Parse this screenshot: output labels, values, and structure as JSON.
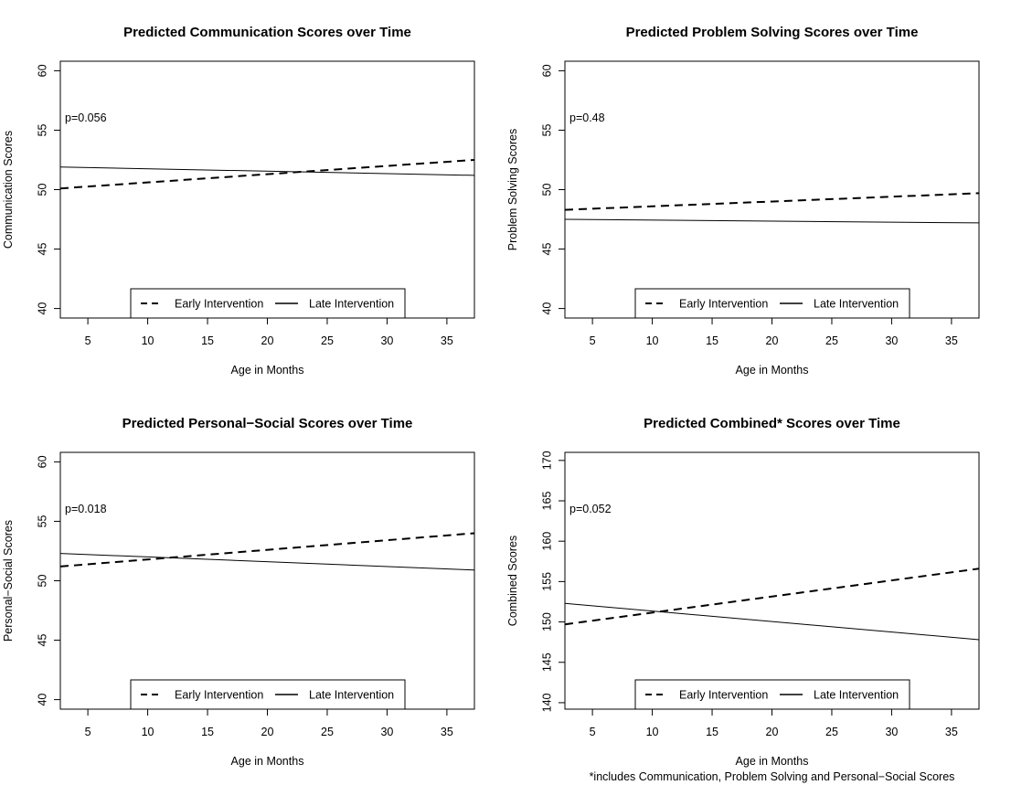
{
  "chart_data": [
    {
      "type": "line",
      "title": "Predicted Communication Scores over Time",
      "xlabel": "Age in Months",
      "ylabel": "Communication Scores",
      "xlim": [
        2.7,
        37.3
      ],
      "ylim": [
        39.2,
        60.8
      ],
      "xticks": [
        5,
        10,
        15,
        20,
        25,
        30,
        35
      ],
      "yticks": [
        40,
        45,
        50,
        55,
        60
      ],
      "annotation": "p=0.056",
      "footnote": "",
      "legend": {
        "position": "bottom-center",
        "entries": [
          "Early Intervention",
          "Late Intervention"
        ]
      },
      "series": [
        {
          "name": "Early Intervention",
          "style": "dashed",
          "x": [
            2.7,
            37.3
          ],
          "y": [
            50.1,
            52.5
          ]
        },
        {
          "name": "Late Intervention",
          "style": "solid",
          "x": [
            2.7,
            37.3
          ],
          "y": [
            51.9,
            51.2
          ]
        }
      ]
    },
    {
      "type": "line",
      "title": "Predicted Problem Solving Scores over Time",
      "xlabel": "Age in Months",
      "ylabel": "Problem Solving Scores",
      "xlim": [
        2.7,
        37.3
      ],
      "ylim": [
        39.2,
        60.8
      ],
      "xticks": [
        5,
        10,
        15,
        20,
        25,
        30,
        35
      ],
      "yticks": [
        40,
        45,
        50,
        55,
        60
      ],
      "annotation": "p=0.48",
      "footnote": "",
      "legend": {
        "position": "bottom-center",
        "entries": [
          "Early Intervention",
          "Late Intervention"
        ]
      },
      "series": [
        {
          "name": "Early Intervention",
          "style": "dashed",
          "x": [
            2.7,
            37.3
          ],
          "y": [
            48.3,
            49.7
          ]
        },
        {
          "name": "Late Intervention",
          "style": "solid",
          "x": [
            2.7,
            37.3
          ],
          "y": [
            47.5,
            47.2
          ]
        }
      ]
    },
    {
      "type": "line",
      "title": "Predicted Personal−Social Scores over Time",
      "xlabel": "Age in Months",
      "ylabel": "Personal−Social Scores",
      "xlim": [
        2.7,
        37.3
      ],
      "ylim": [
        39.2,
        60.8
      ],
      "xticks": [
        5,
        10,
        15,
        20,
        25,
        30,
        35
      ],
      "yticks": [
        40,
        45,
        50,
        55,
        60
      ],
      "annotation": "p=0.018",
      "footnote": "",
      "legend": {
        "position": "bottom-center",
        "entries": [
          "Early Intervention",
          "Late Intervention"
        ]
      },
      "series": [
        {
          "name": "Early Intervention",
          "style": "dashed",
          "x": [
            2.7,
            37.3
          ],
          "y": [
            51.2,
            54.0
          ]
        },
        {
          "name": "Late Intervention",
          "style": "solid",
          "x": [
            2.7,
            37.3
          ],
          "y": [
            52.3,
            50.9
          ]
        }
      ]
    },
    {
      "type": "line",
      "title": "Predicted Combined* Scores over Time",
      "xlabel": "Age in Months",
      "ylabel": "Combined Scores",
      "xlim": [
        2.7,
        37.3
      ],
      "ylim": [
        139.2,
        171.0
      ],
      "xticks": [
        5,
        10,
        15,
        20,
        25,
        30,
        35
      ],
      "yticks": [
        140,
        145,
        150,
        155,
        160,
        165,
        170
      ],
      "annotation": "p=0.052",
      "footnote": "*includes Communication, Problem Solving and Personal−Social Scores",
      "legend": {
        "position": "bottom-center",
        "entries": [
          "Early Intervention",
          "Late Intervention"
        ]
      },
      "series": [
        {
          "name": "Early Intervention",
          "style": "dashed",
          "x": [
            2.7,
            37.3
          ],
          "y": [
            149.7,
            156.6
          ]
        },
        {
          "name": "Late Intervention",
          "style": "solid",
          "x": [
            2.7,
            37.3
          ],
          "y": [
            152.3,
            147.8
          ]
        }
      ]
    }
  ]
}
